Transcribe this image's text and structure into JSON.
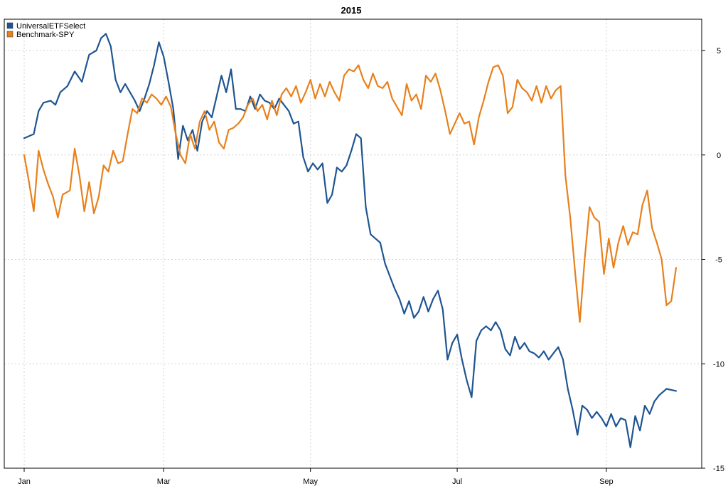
{
  "chart_data": {
    "type": "line",
    "title": "2015",
    "x_ticks": [
      "Jan",
      "Mar",
      "May",
      "Jul",
      "Sep"
    ],
    "y_ticks": [
      5,
      0,
      -5,
      -10,
      -15
    ],
    "ylim": [
      -15,
      6.5
    ],
    "xlim": [
      "2015-01-02",
      "2015-09-30"
    ],
    "grid": true,
    "legend_position": "top-left",
    "y_axis_side": "right",
    "series": [
      {
        "name": "UniversalETFSelect",
        "color": "#1f5591",
        "points": [
          [
            "2015-01-02",
            0.8
          ],
          [
            "2015-01-06",
            1.0
          ],
          [
            "2015-01-08",
            2.1
          ],
          [
            "2015-01-10",
            2.5
          ],
          [
            "2015-01-13",
            2.6
          ],
          [
            "2015-01-15",
            2.4
          ],
          [
            "2015-01-17",
            3.0
          ],
          [
            "2015-01-20",
            3.3
          ],
          [
            "2015-01-23",
            4.0
          ],
          [
            "2015-01-26",
            3.5
          ],
          [
            "2015-01-29",
            4.8
          ],
          [
            "2015-02-01",
            5.0
          ],
          [
            "2015-02-03",
            5.6
          ],
          [
            "2015-02-05",
            5.8
          ],
          [
            "2015-02-07",
            5.2
          ],
          [
            "2015-02-09",
            3.6
          ],
          [
            "2015-02-11",
            3.0
          ],
          [
            "2015-02-13",
            3.4
          ],
          [
            "2015-02-15",
            3.0
          ],
          [
            "2015-02-17",
            2.6
          ],
          [
            "2015-02-19",
            2.1
          ],
          [
            "2015-02-21",
            2.7
          ],
          [
            "2015-02-23",
            3.4
          ],
          [
            "2015-02-25",
            4.3
          ],
          [
            "2015-02-27",
            5.4
          ],
          [
            "2015-03-01",
            4.7
          ],
          [
            "2015-03-03",
            3.5
          ],
          [
            "2015-03-05",
            2.2
          ],
          [
            "2015-03-07",
            -0.2
          ],
          [
            "2015-03-09",
            1.4
          ],
          [
            "2015-03-11",
            0.7
          ],
          [
            "2015-03-13",
            1.2
          ],
          [
            "2015-03-15",
            0.2
          ],
          [
            "2015-03-17",
            1.6
          ],
          [
            "2015-03-19",
            2.1
          ],
          [
            "2015-03-21",
            1.8
          ],
          [
            "2015-03-23",
            2.8
          ],
          [
            "2015-03-25",
            3.8
          ],
          [
            "2015-03-27",
            3.0
          ],
          [
            "2015-03-29",
            4.1
          ],
          [
            "2015-03-31",
            2.2
          ],
          [
            "2015-04-02",
            2.2
          ],
          [
            "2015-04-04",
            2.1
          ],
          [
            "2015-04-06",
            2.8
          ],
          [
            "2015-04-08",
            2.2
          ],
          [
            "2015-04-10",
            2.9
          ],
          [
            "2015-04-12",
            2.6
          ],
          [
            "2015-04-14",
            2.5
          ],
          [
            "2015-04-16",
            2.2
          ],
          [
            "2015-04-18",
            2.7
          ],
          [
            "2015-04-20",
            2.4
          ],
          [
            "2015-04-22",
            2.1
          ],
          [
            "2015-04-24",
            1.5
          ],
          [
            "2015-04-26",
            1.6
          ],
          [
            "2015-04-28",
            -0.1
          ],
          [
            "2015-04-30",
            -0.8
          ],
          [
            "2015-05-02",
            -0.4
          ],
          [
            "2015-05-04",
            -0.7
          ],
          [
            "2015-05-06",
            -0.4
          ],
          [
            "2015-05-08",
            -2.3
          ],
          [
            "2015-05-10",
            -1.9
          ],
          [
            "2015-05-12",
            -0.6
          ],
          [
            "2015-05-14",
            -0.8
          ],
          [
            "2015-05-16",
            -0.5
          ],
          [
            "2015-05-18",
            0.2
          ],
          [
            "2015-05-20",
            1.0
          ],
          [
            "2015-05-22",
            0.8
          ],
          [
            "2015-05-24",
            -2.5
          ],
          [
            "2015-05-26",
            -3.8
          ],
          [
            "2015-05-28",
            -4.0
          ],
          [
            "2015-05-30",
            -4.2
          ],
          [
            "2015-06-01",
            -5.2
          ],
          [
            "2015-06-03",
            -5.8
          ],
          [
            "2015-06-05",
            -6.4
          ],
          [
            "2015-06-07",
            -6.9
          ],
          [
            "2015-06-09",
            -7.6
          ],
          [
            "2015-06-11",
            -7.0
          ],
          [
            "2015-06-13",
            -7.8
          ],
          [
            "2015-06-15",
            -7.5
          ],
          [
            "2015-06-17",
            -6.8
          ],
          [
            "2015-06-19",
            -7.5
          ],
          [
            "2015-06-21",
            -6.9
          ],
          [
            "2015-06-23",
            -6.5
          ],
          [
            "2015-06-25",
            -7.4
          ],
          [
            "2015-06-27",
            -9.8
          ],
          [
            "2015-06-29",
            -9.0
          ],
          [
            "2015-07-01",
            -8.6
          ],
          [
            "2015-07-03",
            -9.8
          ],
          [
            "2015-07-05",
            -10.8
          ],
          [
            "2015-07-07",
            -11.6
          ],
          [
            "2015-07-09",
            -8.9
          ],
          [
            "2015-07-11",
            -8.4
          ],
          [
            "2015-07-13",
            -8.2
          ],
          [
            "2015-07-15",
            -8.4
          ],
          [
            "2015-07-17",
            -8.0
          ],
          [
            "2015-07-19",
            -8.4
          ],
          [
            "2015-07-21",
            -9.3
          ],
          [
            "2015-07-23",
            -9.6
          ],
          [
            "2015-07-25",
            -8.7
          ],
          [
            "2015-07-27",
            -9.3
          ],
          [
            "2015-07-29",
            -9.0
          ],
          [
            "2015-07-31",
            -9.4
          ],
          [
            "2015-08-02",
            -9.5
          ],
          [
            "2015-08-04",
            -9.7
          ],
          [
            "2015-08-06",
            -9.4
          ],
          [
            "2015-08-08",
            -9.8
          ],
          [
            "2015-08-10",
            -9.5
          ],
          [
            "2015-08-12",
            -9.2
          ],
          [
            "2015-08-14",
            -9.8
          ],
          [
            "2015-08-16",
            -11.2
          ],
          [
            "2015-08-18",
            -12.2
          ],
          [
            "2015-08-20",
            -13.4
          ],
          [
            "2015-08-22",
            -12.0
          ],
          [
            "2015-08-24",
            -12.2
          ],
          [
            "2015-08-26",
            -12.6
          ],
          [
            "2015-08-28",
            -12.3
          ],
          [
            "2015-08-30",
            -12.6
          ],
          [
            "2015-09-01",
            -13.0
          ],
          [
            "2015-09-03",
            -12.4
          ],
          [
            "2015-09-05",
            -13.0
          ],
          [
            "2015-09-07",
            -12.6
          ],
          [
            "2015-09-09",
            -12.7
          ],
          [
            "2015-09-11",
            -14.0
          ],
          [
            "2015-09-13",
            -12.5
          ],
          [
            "2015-09-15",
            -13.2
          ],
          [
            "2015-09-17",
            -12.0
          ],
          [
            "2015-09-19",
            -12.4
          ],
          [
            "2015-09-21",
            -11.8
          ],
          [
            "2015-09-23",
            -11.5
          ],
          [
            "2015-09-26",
            -11.2
          ],
          [
            "2015-09-30",
            -11.3
          ]
        ]
      },
      {
        "name": "Benchmark-SPY",
        "color": "#e8801c",
        "points": [
          [
            "2015-01-02",
            0.0
          ],
          [
            "2015-01-04",
            -1.3
          ],
          [
            "2015-01-06",
            -2.7
          ],
          [
            "2015-01-08",
            0.2
          ],
          [
            "2015-01-10",
            -0.7
          ],
          [
            "2015-01-12",
            -1.4
          ],
          [
            "2015-01-14",
            -2.0
          ],
          [
            "2015-01-16",
            -3.0
          ],
          [
            "2015-01-18",
            -1.9
          ],
          [
            "2015-01-21",
            -1.7
          ],
          [
            "2015-01-23",
            0.3
          ],
          [
            "2015-01-25",
            -1.0
          ],
          [
            "2015-01-27",
            -2.7
          ],
          [
            "2015-01-29",
            -1.3
          ],
          [
            "2015-01-31",
            -2.8
          ],
          [
            "2015-02-02",
            -2.0
          ],
          [
            "2015-02-04",
            -0.5
          ],
          [
            "2015-02-06",
            -0.8
          ],
          [
            "2015-02-08",
            0.2
          ],
          [
            "2015-02-10",
            -0.4
          ],
          [
            "2015-02-12",
            -0.3
          ],
          [
            "2015-02-14",
            1.0
          ],
          [
            "2015-02-16",
            2.2
          ],
          [
            "2015-02-18",
            2.0
          ],
          [
            "2015-02-20",
            2.7
          ],
          [
            "2015-02-22",
            2.5
          ],
          [
            "2015-02-24",
            2.9
          ],
          [
            "2015-02-26",
            2.7
          ],
          [
            "2015-02-28",
            2.4
          ],
          [
            "2015-03-02",
            2.8
          ],
          [
            "2015-03-04",
            2.3
          ],
          [
            "2015-03-06",
            1.0
          ],
          [
            "2015-03-08",
            0.0
          ],
          [
            "2015-03-10",
            -0.4
          ],
          [
            "2015-03-12",
            1.0
          ],
          [
            "2015-03-14",
            0.3
          ],
          [
            "2015-03-16",
            1.6
          ],
          [
            "2015-03-18",
            2.1
          ],
          [
            "2015-03-20",
            1.2
          ],
          [
            "2015-03-22",
            1.6
          ],
          [
            "2015-03-24",
            0.6
          ],
          [
            "2015-03-26",
            0.3
          ],
          [
            "2015-03-28",
            1.2
          ],
          [
            "2015-03-30",
            1.3
          ],
          [
            "2015-04-01",
            1.5
          ],
          [
            "2015-04-03",
            1.8
          ],
          [
            "2015-04-05",
            2.4
          ],
          [
            "2015-04-07",
            2.7
          ],
          [
            "2015-04-09",
            2.1
          ],
          [
            "2015-04-11",
            2.4
          ],
          [
            "2015-04-13",
            1.7
          ],
          [
            "2015-04-15",
            2.6
          ],
          [
            "2015-04-17",
            1.9
          ],
          [
            "2015-04-19",
            2.9
          ],
          [
            "2015-04-21",
            3.2
          ],
          [
            "2015-04-23",
            2.8
          ],
          [
            "2015-04-25",
            3.3
          ],
          [
            "2015-04-27",
            2.5
          ],
          [
            "2015-04-29",
            3.0
          ],
          [
            "2015-05-01",
            3.6
          ],
          [
            "2015-05-03",
            2.7
          ],
          [
            "2015-05-05",
            3.4
          ],
          [
            "2015-05-07",
            2.8
          ],
          [
            "2015-05-09",
            3.5
          ],
          [
            "2015-05-11",
            3.0
          ],
          [
            "2015-05-13",
            2.6
          ],
          [
            "2015-05-15",
            3.8
          ],
          [
            "2015-05-17",
            4.1
          ],
          [
            "2015-05-19",
            4.0
          ],
          [
            "2015-05-21",
            4.3
          ],
          [
            "2015-05-23",
            3.6
          ],
          [
            "2015-05-25",
            3.2
          ],
          [
            "2015-05-27",
            3.9
          ],
          [
            "2015-05-29",
            3.3
          ],
          [
            "2015-05-31",
            3.2
          ],
          [
            "2015-06-02",
            3.5
          ],
          [
            "2015-06-04",
            2.7
          ],
          [
            "2015-06-06",
            2.3
          ],
          [
            "2015-06-08",
            1.9
          ],
          [
            "2015-06-10",
            3.4
          ],
          [
            "2015-06-12",
            2.6
          ],
          [
            "2015-06-14",
            2.9
          ],
          [
            "2015-06-16",
            2.2
          ],
          [
            "2015-06-18",
            3.8
          ],
          [
            "2015-06-20",
            3.5
          ],
          [
            "2015-06-22",
            3.9
          ],
          [
            "2015-06-24",
            3.1
          ],
          [
            "2015-06-26",
            2.1
          ],
          [
            "2015-06-28",
            1.0
          ],
          [
            "2015-06-30",
            1.5
          ],
          [
            "2015-07-02",
            2.0
          ],
          [
            "2015-07-04",
            1.5
          ],
          [
            "2015-07-06",
            1.6
          ],
          [
            "2015-07-08",
            0.5
          ],
          [
            "2015-07-10",
            1.8
          ],
          [
            "2015-07-12",
            2.6
          ],
          [
            "2015-07-14",
            3.5
          ],
          [
            "2015-07-16",
            4.2
          ],
          [
            "2015-07-18",
            4.3
          ],
          [
            "2015-07-20",
            3.8
          ],
          [
            "2015-07-22",
            2.0
          ],
          [
            "2015-07-24",
            2.3
          ],
          [
            "2015-07-26",
            3.6
          ],
          [
            "2015-07-28",
            3.2
          ],
          [
            "2015-07-30",
            3.0
          ],
          [
            "2015-08-01",
            2.6
          ],
          [
            "2015-08-03",
            3.3
          ],
          [
            "2015-08-05",
            2.5
          ],
          [
            "2015-08-07",
            3.3
          ],
          [
            "2015-08-09",
            2.7
          ],
          [
            "2015-08-11",
            3.1
          ],
          [
            "2015-08-13",
            3.3
          ],
          [
            "2015-08-15",
            -1.0
          ],
          [
            "2015-08-17",
            -3.0
          ],
          [
            "2015-08-19",
            -5.6
          ],
          [
            "2015-08-21",
            -8.0
          ],
          [
            "2015-08-23",
            -5.0
          ],
          [
            "2015-08-25",
            -2.5
          ],
          [
            "2015-08-27",
            -3.0
          ],
          [
            "2015-08-29",
            -3.2
          ],
          [
            "2015-08-31",
            -5.7
          ],
          [
            "2015-09-02",
            -4.0
          ],
          [
            "2015-09-04",
            -5.4
          ],
          [
            "2015-09-06",
            -4.2
          ],
          [
            "2015-09-08",
            -3.4
          ],
          [
            "2015-09-10",
            -4.3
          ],
          [
            "2015-09-12",
            -3.7
          ],
          [
            "2015-09-14",
            -3.8
          ],
          [
            "2015-09-16",
            -2.4
          ],
          [
            "2015-09-18",
            -1.7
          ],
          [
            "2015-09-20",
            -3.5
          ],
          [
            "2015-09-22",
            -4.2
          ],
          [
            "2015-09-24",
            -5.0
          ],
          [
            "2015-09-26",
            -7.2
          ],
          [
            "2015-09-28",
            -7.0
          ],
          [
            "2015-09-30",
            -5.4
          ]
        ]
      }
    ]
  }
}
